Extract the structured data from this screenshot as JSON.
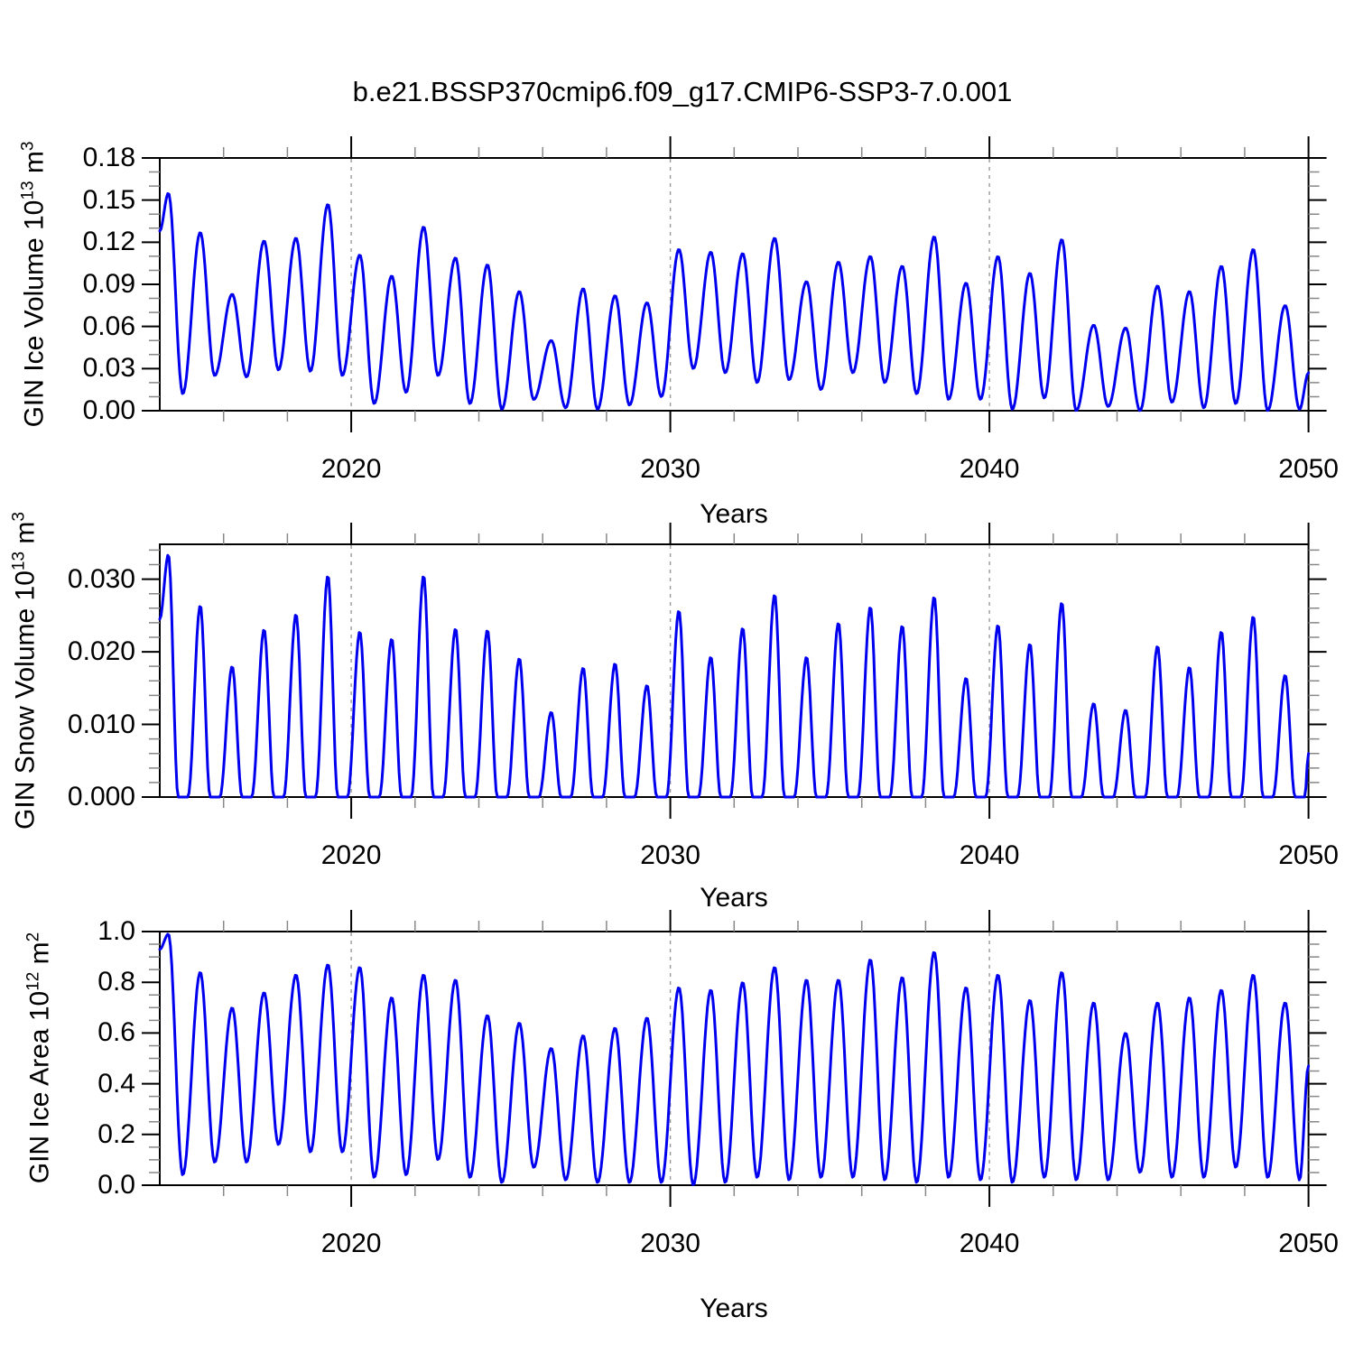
{
  "title": "b.e21.BSSP370cmip6.f09_g17.CMIP6-SSP3-7.0.001",
  "line_color": "#0000ee",
  "grid_color": "#999999",
  "axis_color": "#000000",
  "minor_tick_color": "#888888",
  "chart_data": [
    {
      "type": "line",
      "panel": "gin-ice-volume",
      "ylabel": {
        "base": "GIN Ice Volume 10",
        "exp": "13",
        "unit": " m",
        "unit_exp": "3"
      },
      "xlabel": "Years",
      "xlim": [
        2014,
        2050
      ],
      "ylim": [
        0,
        0.18
      ],
      "yticks": {
        "values": [
          0,
          0.03,
          0.06,
          0.09,
          0.12,
          0.15,
          0.18
        ],
        "labels": [
          "0.00",
          "0.03",
          "0.06",
          "0.09",
          "0.12",
          "0.15",
          "0.18"
        ]
      },
      "y_minor_step": 0.01,
      "xticks": {
        "values": [
          2020,
          2030,
          2040,
          2050
        ],
        "labels": [
          "2020",
          "2030",
          "2040",
          "2050"
        ]
      },
      "x_minor_step": 2,
      "gridlines": [
        2020,
        2030,
        2040
      ],
      "series": {
        "year_start": 2014,
        "start_value": 0.128,
        "peaks": [
          0.155,
          0.127,
          0.083,
          0.121,
          0.123,
          0.147,
          0.111,
          0.096,
          0.131,
          0.109,
          0.104,
          0.085,
          0.05,
          0.087,
          0.082,
          0.077,
          0.115,
          0.113,
          0.112,
          0.123,
          0.092,
          0.106,
          0.11,
          0.103,
          0.124,
          0.091,
          0.11,
          0.098,
          0.122,
          0.061,
          0.059,
          0.089,
          0.085,
          0.103,
          0.115,
          0.075
        ],
        "mins": [
          0.012,
          0.025,
          0.024,
          0.029,
          0.028,
          0.025,
          0.005,
          0.013,
          0.025,
          0.005,
          0.001,
          0.008,
          0.002,
          0.001,
          0.004,
          0.01,
          0.03,
          0.027,
          0.02,
          0.022,
          0.015,
          0.027,
          0.02,
          0.012,
          0.008,
          0.008,
          0.001,
          0.009,
          0.0,
          0.003,
          0.0,
          0.006,
          0.002,
          0.005,
          0.0,
          0.001
        ],
        "end_value": 0.027,
        "flat_min": false
      }
    },
    {
      "type": "line",
      "panel": "gin-snow-volume",
      "ylabel": {
        "base": "GIN Snow Volume 10",
        "exp": "13",
        "unit": " m",
        "unit_exp": "3"
      },
      "xlabel": "Years",
      "xlim": [
        2014,
        2050
      ],
      "ylim": [
        0,
        0.0348
      ],
      "yticks": {
        "values": [
          0,
          0.01,
          0.02,
          0.03
        ],
        "labels": [
          "0.000",
          "0.010",
          "0.020",
          "0.030"
        ]
      },
      "y_minor_step": 0.002,
      "xticks": {
        "values": [
          2020,
          2030,
          2040,
          2050
        ],
        "labels": [
          "2020",
          "2030",
          "2040",
          "2050"
        ]
      },
      "x_minor_step": 2,
      "gridlines": [
        2020,
        2030,
        2040
      ],
      "series": {
        "year_start": 2014,
        "start_value": 0.0245,
        "peaks": [
          0.0334,
          0.0264,
          0.018,
          0.0231,
          0.0252,
          0.0305,
          0.0228,
          0.0218,
          0.0305,
          0.0232,
          0.023,
          0.0191,
          0.0117,
          0.0178,
          0.0184,
          0.0154,
          0.0257,
          0.0193,
          0.0233,
          0.0279,
          0.0193,
          0.024,
          0.0262,
          0.0236,
          0.0276,
          0.0164,
          0.0237,
          0.0211,
          0.0268,
          0.0129,
          0.012,
          0.0208,
          0.0179,
          0.0228,
          0.0249,
          0.0168
        ],
        "mins": [
          0,
          0,
          0,
          0,
          0,
          0,
          0,
          0,
          0,
          0,
          0,
          0,
          0,
          0,
          0,
          0,
          0,
          0,
          0,
          0,
          0,
          0,
          0,
          0,
          0,
          0,
          0,
          0,
          0,
          0,
          0,
          0,
          0,
          0,
          0,
          0
        ],
        "end_value": 0.006,
        "flat_min": true
      }
    },
    {
      "type": "line",
      "panel": "gin-ice-area",
      "ylabel": {
        "base": "GIN Ice Area 10",
        "exp": "12",
        "unit": " m",
        "unit_exp": "2"
      },
      "xlabel": "Years",
      "xlim": [
        2014,
        2050
      ],
      "ylim": [
        0,
        1.0
      ],
      "yticks": {
        "values": [
          0,
          0.2,
          0.4,
          0.6,
          0.8,
          1.0
        ],
        "labels": [
          "0.0",
          "0.2",
          "0.4",
          "0.6",
          "0.8",
          "1.0"
        ]
      },
      "y_minor_step": 0.05,
      "xticks": {
        "values": [
          2020,
          2030,
          2040,
          2050
        ],
        "labels": [
          "2020",
          "2030",
          "2040",
          "2050"
        ]
      },
      "x_minor_step": 2,
      "gridlines": [
        2020,
        2030,
        2040
      ],
      "series": {
        "year_start": 2014,
        "start_value": 0.93,
        "peaks": [
          0.99,
          0.84,
          0.7,
          0.76,
          0.83,
          0.87,
          0.86,
          0.74,
          0.83,
          0.81,
          0.67,
          0.64,
          0.54,
          0.59,
          0.62,
          0.66,
          0.78,
          0.77,
          0.8,
          0.86,
          0.81,
          0.81,
          0.89,
          0.82,
          0.92,
          0.78,
          0.83,
          0.73,
          0.84,
          0.72,
          0.6,
          0.72,
          0.74,
          0.77,
          0.83,
          0.72
        ],
        "mins": [
          0.04,
          0.09,
          0.09,
          0.16,
          0.13,
          0.13,
          0.03,
          0.04,
          0.1,
          0.03,
          0.01,
          0.07,
          0.02,
          0.01,
          0.01,
          0.01,
          0.0,
          0.01,
          0.03,
          0.02,
          0.03,
          0.03,
          0.02,
          0.01,
          0.03,
          0.02,
          0.01,
          0.03,
          0.02,
          0.02,
          0.05,
          0.03,
          0.03,
          0.07,
          0.03,
          0.02
        ],
        "end_value": 0.47,
        "flat_min": false
      }
    }
  ]
}
